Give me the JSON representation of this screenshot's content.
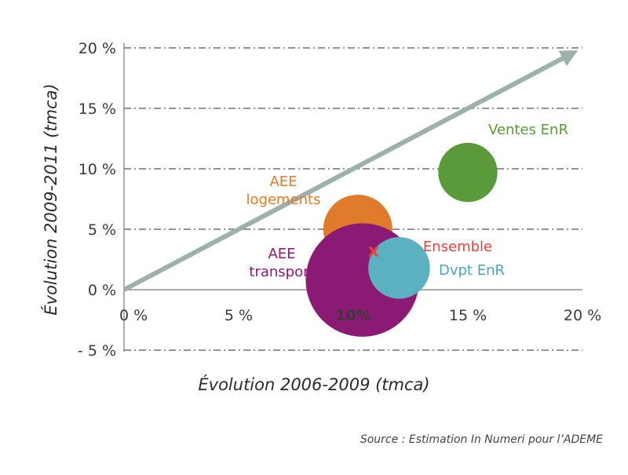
{
  "chart_data": {
    "type": "scatter",
    "title": "",
    "xlabel": "Évolution 2006-2009 (tmca)",
    "ylabel": "Évolution 2009-2011 (tmca)",
    "xlim": [
      0,
      20
    ],
    "ylim": [
      -5,
      20
    ],
    "x_ticks": [
      {
        "v": 0,
        "label": "0 %"
      },
      {
        "v": 5,
        "label": "5 %"
      },
      {
        "v": 10,
        "label": "10%"
      },
      {
        "v": 15,
        "label": "15 %"
      },
      {
        "v": 20,
        "label": "20 %"
      }
    ],
    "y_ticks": [
      {
        "v": -5,
        "label": "- 5 %"
      },
      {
        "v": 0,
        "label": "0 %"
      },
      {
        "v": 5,
        "label": "5 %"
      },
      {
        "v": 10,
        "label": "10 %"
      },
      {
        "v": 15,
        "label": "15 %"
      },
      {
        "v": 20,
        "label": "20 %"
      }
    ],
    "grid": true,
    "arrow": {
      "from": [
        0,
        0
      ],
      "to": [
        19.8,
        19.8
      ],
      "color": "#9db0ac"
    },
    "bubbles": [
      {
        "label": "Ventes EnR",
        "x": 15.0,
        "y": 9.7,
        "size": 1.2,
        "color": "#5a9a3a"
      },
      {
        "label": "AEE logements",
        "x": 10.2,
        "y": 5.0,
        "size": 1.4,
        "color": "#e07b2c"
      },
      {
        "label": "AEE transport",
        "x": 10.4,
        "y": 0.8,
        "size": 2.3,
        "color": "#8b1a74"
      },
      {
        "label": "Dvpt EnR",
        "x": 12.0,
        "y": 1.8,
        "size": 1.25,
        "color": "#5bb1bf"
      }
    ],
    "marker": {
      "label": "Ensemble",
      "x": 11.5,
      "y": 3.8,
      "symbol": "x",
      "color": "#e8413a"
    }
  },
  "source": "Source : Estimation In Numeri pour l’ADEME"
}
